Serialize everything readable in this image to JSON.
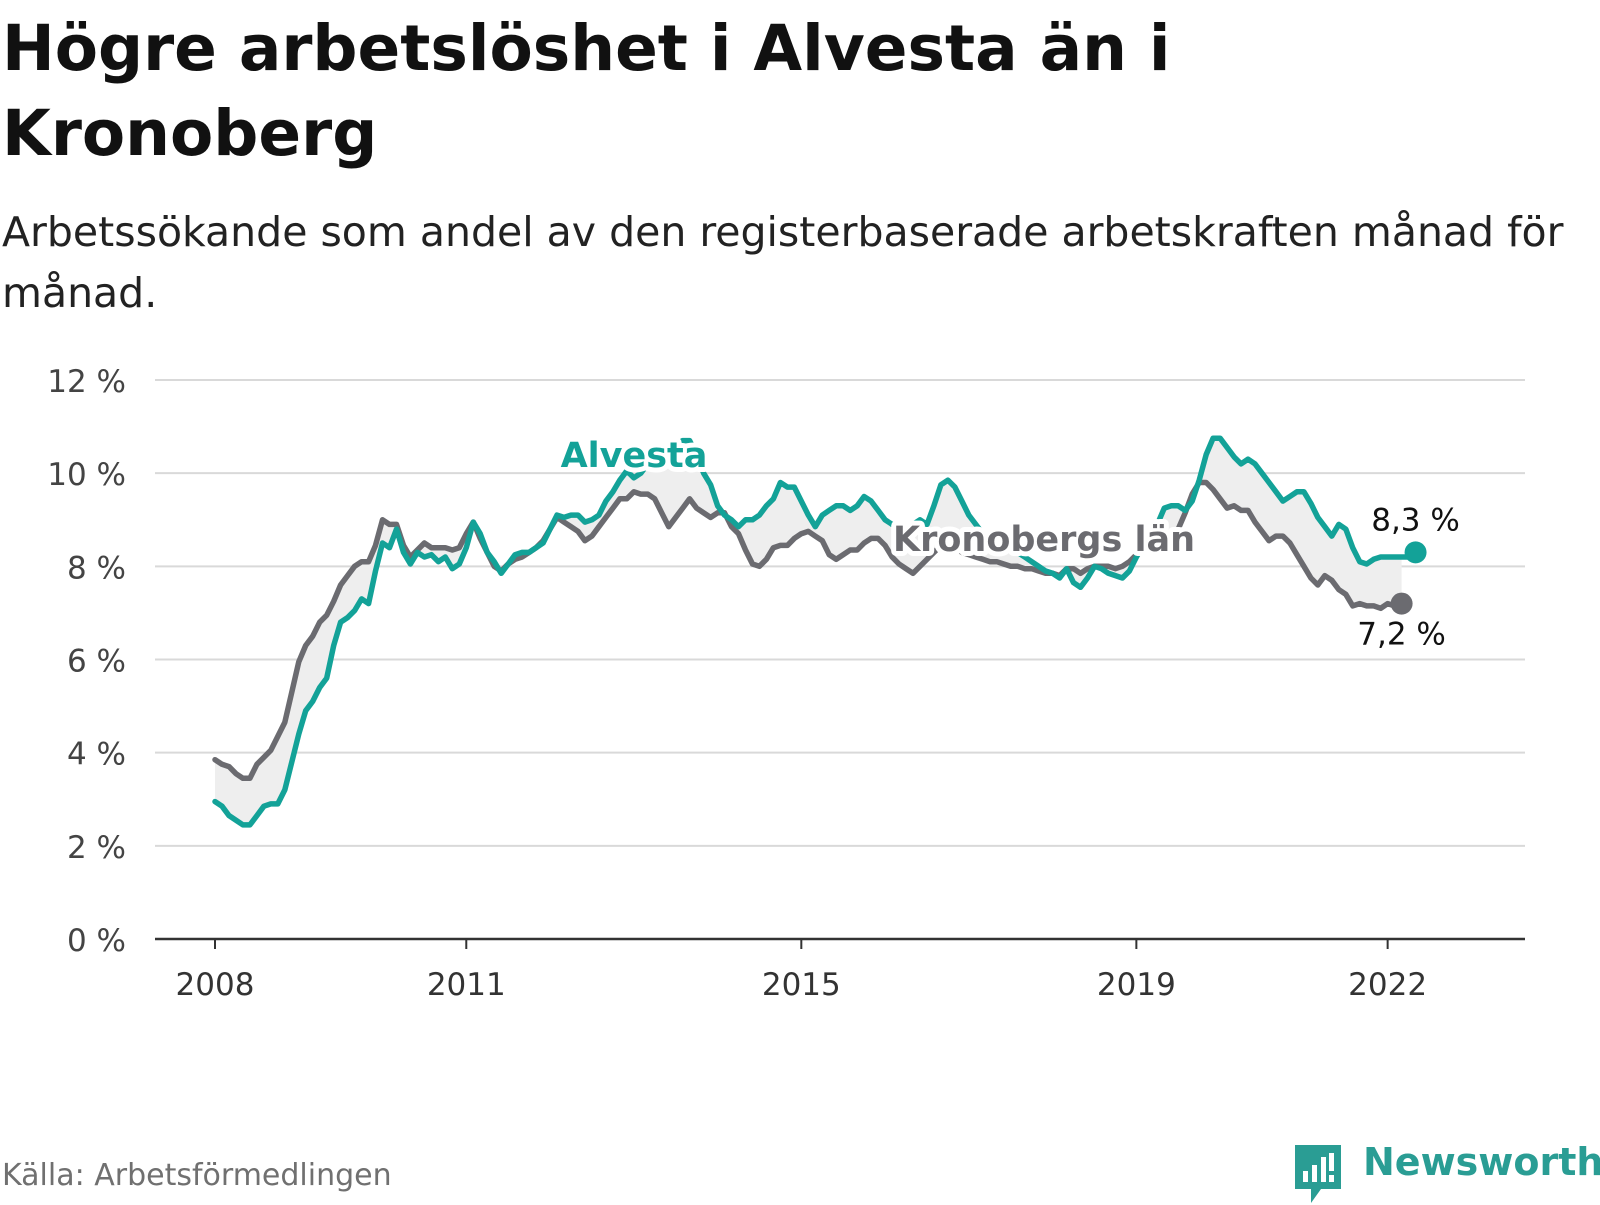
{
  "title": "Högre arbetslöshet i Alvesta än i Kronoberg",
  "subtitle": "Arbetssökande som andel av den registerbaserade arbetskraften månad för månad.",
  "source": "Källa: Arbetsförmedlingen",
  "brand": {
    "name": "Newsworthy",
    "icon": "newsworthy-logo-icon",
    "color": "#2a9d94"
  },
  "chart_data": {
    "type": "line",
    "x_start": "2008-01",
    "x_step": "month",
    "x_ticks": [
      {
        "label": "2008",
        "date": "2008-01"
      },
      {
        "label": "2011",
        "date": "2011-01"
      },
      {
        "label": "2015",
        "date": "2015-01"
      },
      {
        "label": "2019",
        "date": "2019-01"
      },
      {
        "label": "2022",
        "date": "2022-01"
      }
    ],
    "y_ticks": [
      {
        "value": 0,
        "label": "0 %"
      },
      {
        "value": 2,
        "label": "2 %"
      },
      {
        "value": 4,
        "label": "4 %"
      },
      {
        "value": 6,
        "label": "6 %"
      },
      {
        "value": 8,
        "label": "8 %"
      },
      {
        "value": 10,
        "label": "10 %"
      },
      {
        "value": 12,
        "label": "12 %"
      }
    ],
    "ylim": [
      0,
      12
    ],
    "grid": "horizontal",
    "band_fill": "#eeeeee",
    "series": [
      {
        "name": "Alvesta",
        "color": "#13a298",
        "last_label": "8,3 %",
        "values": [
          2.95,
          2.85,
          2.65,
          2.55,
          2.45,
          2.45,
          2.65,
          2.85,
          2.9,
          2.9,
          3.2,
          3.8,
          4.4,
          4.9,
          5.1,
          5.4,
          5.6,
          6.3,
          6.8,
          6.9,
          7.05,
          7.3,
          7.2,
          7.9,
          8.5,
          8.4,
          8.8,
          8.3,
          8.05,
          8.3,
          8.2,
          8.25,
          8.1,
          8.2,
          7.95,
          8.05,
          8.4,
          8.95,
          8.7,
          8.3,
          8.1,
          7.85,
          8.05,
          8.25,
          8.3,
          8.3,
          8.4,
          8.5,
          8.8,
          9.1,
          9.05,
          9.1,
          9.1,
          8.95,
          9.0,
          9.1,
          9.4,
          9.6,
          9.85,
          10.05,
          9.9,
          10.0,
          10.2,
          10.35,
          10.5,
          10.45,
          10.6,
          10.7,
          10.7,
          10.4,
          10.0,
          9.75,
          9.3,
          9.1,
          9.0,
          8.85,
          9.0,
          9.0,
          9.1,
          9.3,
          9.45,
          9.8,
          9.7,
          9.7,
          9.4,
          9.1,
          8.85,
          9.1,
          9.2,
          9.3,
          9.3,
          9.2,
          9.3,
          9.5,
          9.4,
          9.2,
          9.0,
          8.9,
          8.85,
          8.8,
          8.9,
          9.0,
          8.9,
          9.3,
          9.75,
          9.85,
          9.7,
          9.4,
          9.1,
          8.9,
          8.7,
          8.6,
          8.5,
          8.4,
          8.35,
          8.3,
          8.2,
          8.1,
          8.0,
          7.9,
          7.85,
          7.75,
          7.95,
          7.65,
          7.55,
          7.75,
          8.0,
          7.95,
          7.85,
          7.8,
          7.75,
          7.9,
          8.2,
          8.45,
          8.75,
          8.9,
          9.25,
          9.3,
          9.3,
          9.2,
          9.4,
          9.85,
          10.4,
          10.75,
          10.75,
          10.55,
          10.35,
          10.2,
          10.3,
          10.2,
          10.0,
          9.8,
          9.6,
          9.4,
          9.5,
          9.6,
          9.6,
          9.35,
          9.05,
          8.85,
          8.65,
          8.9,
          8.8,
          8.4,
          8.1,
          8.05,
          8.15,
          8.2,
          8.2,
          8.2,
          8.2,
          8.2,
          8.3
        ]
      },
      {
        "name": "Kronobergs län",
        "color": "#6b6b70",
        "last_label": "7,2 %",
        "values": [
          3.85,
          3.75,
          3.7,
          3.55,
          3.45,
          3.45,
          3.75,
          3.9,
          4.05,
          4.35,
          4.65,
          5.3,
          5.95,
          6.3,
          6.5,
          6.8,
          6.95,
          7.25,
          7.6,
          7.8,
          8.0,
          8.1,
          8.1,
          8.45,
          9.0,
          8.9,
          8.9,
          8.45,
          8.2,
          8.35,
          8.5,
          8.4,
          8.4,
          8.4,
          8.35,
          8.4,
          8.7,
          8.95,
          8.6,
          8.3,
          8.0,
          7.9,
          8.05,
          8.15,
          8.2,
          8.3,
          8.4,
          8.55,
          8.8,
          9.05,
          8.95,
          8.85,
          8.75,
          8.55,
          8.65,
          8.85,
          9.05,
          9.25,
          9.45,
          9.45,
          9.6,
          9.55,
          9.55,
          9.45,
          9.15,
          8.85,
          9.05,
          9.25,
          9.45,
          9.25,
          9.15,
          9.05,
          9.15,
          9.15,
          8.85,
          8.7,
          8.35,
          8.05,
          8.0,
          8.15,
          8.4,
          8.45,
          8.45,
          8.6,
          8.7,
          8.75,
          8.65,
          8.55,
          8.25,
          8.15,
          8.25,
          8.35,
          8.35,
          8.5,
          8.6,
          8.6,
          8.45,
          8.2,
          8.05,
          7.95,
          7.85,
          8.0,
          8.15,
          8.3,
          8.45,
          8.5,
          8.4,
          8.3,
          8.25,
          8.2,
          8.15,
          8.1,
          8.1,
          8.05,
          8.0,
          8.0,
          7.95,
          7.95,
          7.9,
          7.85,
          7.85,
          7.8,
          7.95,
          7.95,
          7.85,
          7.95,
          8.0,
          8.0,
          8.0,
          7.95,
          8.0,
          8.1,
          8.25,
          8.35,
          8.5,
          8.5,
          8.5,
          8.5,
          8.8,
          9.15,
          9.55,
          9.8,
          9.8,
          9.65,
          9.45,
          9.25,
          9.3,
          9.2,
          9.2,
          8.95,
          8.75,
          8.55,
          8.65,
          8.65,
          8.5,
          8.25,
          8.0,
          7.75,
          7.6,
          7.8,
          7.7,
          7.5,
          7.4,
          7.15,
          7.2,
          7.15,
          7.15,
          7.1,
          7.2,
          7.15,
          7.2
        ]
      }
    ]
  }
}
